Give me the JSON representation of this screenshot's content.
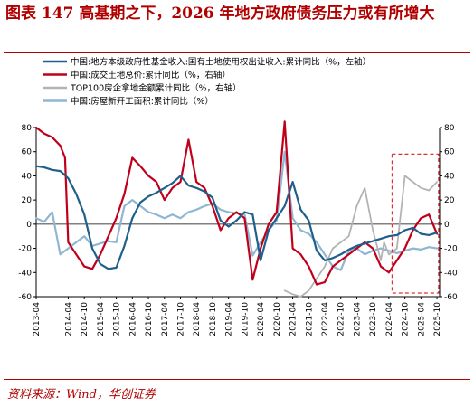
{
  "title": "图表 147    高基期之下，2026 年地方政府债务压力或有所增大",
  "source": "资料来源：Wind，华创证券",
  "chart_data": {
    "type": "line",
    "xlabel": "",
    "ylabel_left": "",
    "ylabel_right": "",
    "ylim_left": [
      -60,
      80
    ],
    "ylim_right": [
      -60,
      80
    ],
    "yticks": [
      -60,
      -40,
      -20,
      0,
      20,
      40,
      60,
      80
    ],
    "xlim": [
      2013.25,
      2025.833
    ],
    "xtick_labels": [
      "2013-04",
      "2014-04",
      "2014-10",
      "2015-04",
      "2015-10",
      "2016-04",
      "2016-10",
      "2017-04",
      "2017-10",
      "2018-04",
      "2018-10",
      "2019-04",
      "2019-10",
      "2020-04",
      "2020-10",
      "2021-04",
      "2021-10",
      "2022-04",
      "2022-10",
      "2023-04",
      "2023-10",
      "2024-04",
      "2024-10",
      "2025-04",
      "2025-10"
    ],
    "xtick_positions": [
      2013.25,
      2014.25,
      2014.75,
      2015.25,
      2015.75,
      2016.25,
      2016.75,
      2017.25,
      2017.75,
      2018.25,
      2018.75,
      2019.25,
      2019.75,
      2020.25,
      2020.75,
      2021.25,
      2021.75,
      2022.25,
      2022.75,
      2023.25,
      2023.75,
      2024.25,
      2024.75,
      2025.25,
      2025.75
    ],
    "grid": false,
    "legend_placement": "top",
    "highlight_box": {
      "x": [
        2024.35,
        2025.8
      ],
      "y": [
        -57,
        58
      ],
      "color": "#e03030"
    },
    "series": [
      {
        "name": "中国:地方本级政府性基金收入:国有土地使用权出让收入:累计同比（%，左轴）",
        "axis": "left",
        "color": "#1f5f8b",
        "width": 2.2,
        "x": [
          2013.25,
          2013.5,
          2013.75,
          2014.0,
          2014.25,
          2014.5,
          2014.75,
          2015.0,
          2015.25,
          2015.5,
          2015.75,
          2016.0,
          2016.25,
          2016.5,
          2016.75,
          2017.0,
          2017.25,
          2017.5,
          2017.75,
          2018.0,
          2018.25,
          2018.5,
          2018.75,
          2019.0,
          2019.25,
          2019.5,
          2019.75,
          2020.0,
          2020.25,
          2020.5,
          2020.75,
          2021.0,
          2021.25,
          2021.5,
          2021.75,
          2022.0,
          2022.25,
          2022.5,
          2022.75,
          2023.0,
          2023.25,
          2023.5,
          2023.75,
          2024.0,
          2024.25,
          2024.5,
          2024.75,
          2025.0,
          2025.25,
          2025.5,
          2025.75
        ],
        "y": [
          48,
          47,
          45,
          44,
          38,
          25,
          8,
          -20,
          -33,
          -37,
          -36,
          -18,
          5,
          18,
          23,
          26,
          30,
          34,
          40,
          32,
          30,
          27,
          22,
          3,
          -2,
          3,
          10,
          8,
          -30,
          -5,
          5,
          15,
          35,
          12,
          3,
          -22,
          -30,
          -28,
          -25,
          -21,
          -18,
          -16,
          -14,
          -12,
          -10,
          -9,
          -5,
          -3,
          -8,
          -9,
          -7
        ]
      },
      {
        "name": "中国:成交土地总价:累计同比（%，右轴）",
        "axis": "right",
        "color": "#c0001a",
        "width": 2.2,
        "x": [
          2013.25,
          2013.5,
          2013.75,
          2014.0,
          2014.15,
          2014.25,
          2014.5,
          2014.75,
          2015.0,
          2015.25,
          2015.5,
          2015.75,
          2016.0,
          2016.25,
          2016.5,
          2016.75,
          2017.0,
          2017.25,
          2017.5,
          2017.75,
          2018.0,
          2018.25,
          2018.5,
          2018.75,
          2019.0,
          2019.25,
          2019.5,
          2019.75,
          2020.0,
          2020.25,
          2020.5,
          2020.75,
          2021.0,
          2021.25,
          2021.5,
          2021.75,
          2022.0,
          2022.25,
          2022.5,
          2022.75,
          2023.0,
          2023.25,
          2023.5,
          2023.75,
          2024.0,
          2024.25,
          2024.5,
          2024.75,
          2025.0,
          2025.25,
          2025.5,
          2025.75
        ],
        "y": [
          80,
          75,
          72,
          65,
          55,
          -15,
          -25,
          -35,
          -37,
          -25,
          -10,
          5,
          25,
          55,
          48,
          40,
          35,
          20,
          30,
          35,
          70,
          35,
          30,
          15,
          -5,
          5,
          10,
          5,
          -46,
          -20,
          0,
          10,
          85,
          -20,
          -25,
          -35,
          -50,
          -48,
          -35,
          -30,
          -25,
          -20,
          -15,
          -20,
          -35,
          -40,
          -30,
          -20,
          -5,
          5,
          8,
          -8
        ]
      },
      {
        "name": "TOP100房企拿地金额累计同比（%，右轴）",
        "axis": "right",
        "color": "#b3b3b3",
        "width": 1.8,
        "x": [
          2021.0,
          2021.25,
          2021.5,
          2021.75,
          2022.0,
          2022.25,
          2022.5,
          2022.75,
          2023.0,
          2023.25,
          2023.5,
          2023.75,
          2024.0,
          2024.1,
          2024.25,
          2024.5,
          2024.75,
          2025.0,
          2025.25,
          2025.5,
          2025.75
        ],
        "y": [
          -55,
          -58,
          -60,
          -55,
          -45,
          -35,
          -20,
          -15,
          -10,
          15,
          30,
          -5,
          -30,
          -15,
          -25,
          -20,
          40,
          35,
          30,
          28,
          35
        ]
      },
      {
        "name": "中国:房屋新开工面积:累计同比（%）",
        "axis": "left",
        "color": "#8fb6d2",
        "width": 2.2,
        "x": [
          2013.25,
          2013.5,
          2013.75,
          2014.0,
          2014.25,
          2014.5,
          2014.75,
          2015.0,
          2015.25,
          2015.5,
          2015.75,
          2016.0,
          2016.25,
          2016.5,
          2016.75,
          2017.0,
          2017.25,
          2017.5,
          2017.75,
          2018.0,
          2018.25,
          2018.5,
          2018.75,
          2019.0,
          2019.25,
          2019.5,
          2019.75,
          2020.0,
          2020.25,
          2020.5,
          2020.75,
          2021.0,
          2021.25,
          2021.5,
          2021.75,
          2022.0,
          2022.25,
          2022.5,
          2022.75,
          2023.0,
          2023.25,
          2023.5,
          2023.75,
          2024.0,
          2024.25,
          2024.5,
          2024.75,
          2025.0,
          2025.25,
          2025.5,
          2025.75
        ],
        "y": [
          5,
          2,
          10,
          -25,
          -20,
          -15,
          -10,
          -18,
          -16,
          -14,
          -15,
          15,
          20,
          15,
          10,
          8,
          5,
          8,
          5,
          10,
          12,
          15,
          17,
          12,
          10,
          9,
          8,
          -26,
          -15,
          -5,
          3,
          60,
          5,
          -5,
          -8,
          -15,
          -25,
          -35,
          -38,
          -22,
          -20,
          -25,
          -22,
          -20,
          -22,
          -24,
          -22,
          -20,
          -21,
          -19,
          -20
        ]
      }
    ]
  }
}
